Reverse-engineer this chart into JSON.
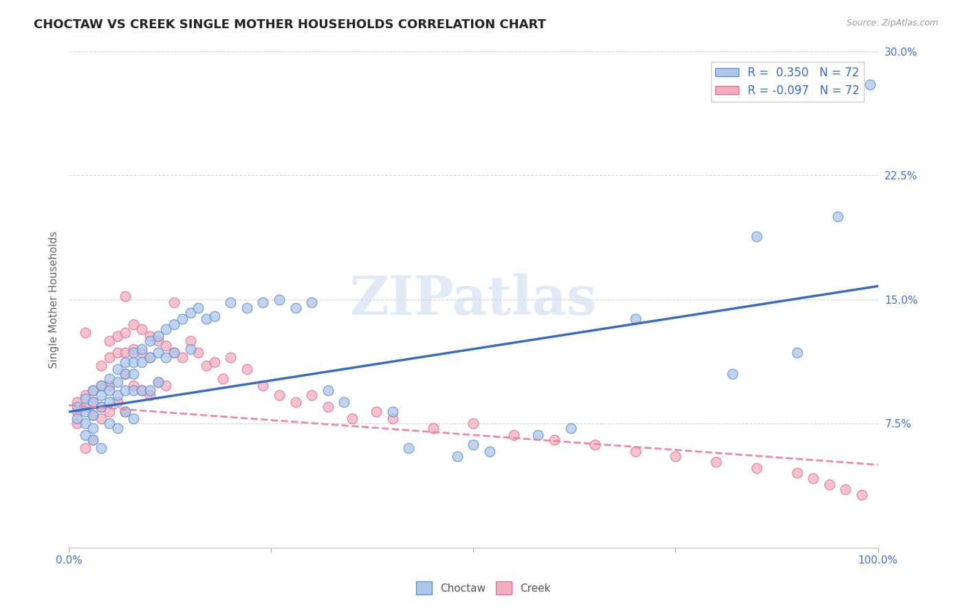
{
  "title": "CHOCTAW VS CREEK SINGLE MOTHER HOUSEHOLDS CORRELATION CHART",
  "source": "Source: ZipAtlas.com",
  "ylabel": "Single Mother Households",
  "x_min": 0.0,
  "x_max": 1.0,
  "y_min": 0.0,
  "y_max": 0.3,
  "y_ticks": [
    0.075,
    0.15,
    0.225,
    0.3
  ],
  "y_tick_labels": [
    "7.5%",
    "15.0%",
    "22.5%",
    "30.0%"
  ],
  "choctaw_color": "#aec6e8",
  "creek_color": "#f4aec0",
  "choctaw_edge_color": "#5b8fd4",
  "creek_edge_color": "#e07090",
  "choctaw_line_color": "#3a6abf",
  "creek_line_color": "#e88aa0",
  "choctaw_r": 0.35,
  "choctaw_n": 72,
  "creek_r": -0.097,
  "creek_n": 72,
  "background_color": "#ffffff",
  "grid_color": "#c8c8c8",
  "title_color": "#222222",
  "axis_label_color": "#4472c4",
  "choctaw_line_x0": 0.0,
  "choctaw_line_y0": 0.082,
  "choctaw_line_x1": 1.0,
  "choctaw_line_y1": 0.158,
  "creek_line_x0": 0.0,
  "creek_line_y0": 0.086,
  "creek_line_x1": 1.0,
  "creek_line_y1": 0.05,
  "choctaw_scatter_x": [
    0.01,
    0.01,
    0.02,
    0.02,
    0.02,
    0.02,
    0.03,
    0.03,
    0.03,
    0.03,
    0.03,
    0.04,
    0.04,
    0.04,
    0.04,
    0.05,
    0.05,
    0.05,
    0.05,
    0.06,
    0.06,
    0.06,
    0.06,
    0.07,
    0.07,
    0.07,
    0.07,
    0.08,
    0.08,
    0.08,
    0.08,
    0.08,
    0.09,
    0.09,
    0.09,
    0.1,
    0.1,
    0.1,
    0.11,
    0.11,
    0.11,
    0.12,
    0.12,
    0.13,
    0.13,
    0.14,
    0.15,
    0.15,
    0.16,
    0.17,
    0.18,
    0.2,
    0.22,
    0.24,
    0.26,
    0.28,
    0.3,
    0.32,
    0.34,
    0.4,
    0.42,
    0.48,
    0.5,
    0.52,
    0.58,
    0.62,
    0.7,
    0.82,
    0.85,
    0.9,
    0.95,
    0.99
  ],
  "choctaw_scatter_y": [
    0.085,
    0.078,
    0.09,
    0.082,
    0.075,
    0.068,
    0.095,
    0.088,
    0.08,
    0.072,
    0.065,
    0.098,
    0.092,
    0.085,
    0.06,
    0.102,
    0.095,
    0.088,
    0.075,
    0.108,
    0.1,
    0.092,
    0.072,
    0.112,
    0.105,
    0.095,
    0.082,
    0.118,
    0.112,
    0.105,
    0.095,
    0.078,
    0.12,
    0.112,
    0.095,
    0.125,
    0.115,
    0.095,
    0.128,
    0.118,
    0.1,
    0.132,
    0.115,
    0.135,
    0.118,
    0.138,
    0.142,
    0.12,
    0.145,
    0.138,
    0.14,
    0.148,
    0.145,
    0.148,
    0.15,
    0.145,
    0.148,
    0.095,
    0.088,
    0.082,
    0.06,
    0.055,
    0.062,
    0.058,
    0.068,
    0.072,
    0.138,
    0.105,
    0.188,
    0.118,
    0.2,
    0.28
  ],
  "creek_scatter_x": [
    0.01,
    0.01,
    0.01,
    0.02,
    0.02,
    0.02,
    0.02,
    0.03,
    0.03,
    0.03,
    0.03,
    0.04,
    0.04,
    0.04,
    0.04,
    0.05,
    0.05,
    0.05,
    0.05,
    0.06,
    0.06,
    0.06,
    0.07,
    0.07,
    0.07,
    0.07,
    0.08,
    0.08,
    0.08,
    0.09,
    0.09,
    0.09,
    0.1,
    0.1,
    0.1,
    0.11,
    0.11,
    0.12,
    0.12,
    0.13,
    0.14,
    0.15,
    0.16,
    0.17,
    0.18,
    0.19,
    0.2,
    0.22,
    0.24,
    0.26,
    0.28,
    0.3,
    0.32,
    0.35,
    0.38,
    0.4,
    0.45,
    0.5,
    0.55,
    0.6,
    0.65,
    0.7,
    0.75,
    0.8,
    0.85,
    0.9,
    0.92,
    0.94,
    0.96,
    0.98,
    0.13,
    0.07
  ],
  "creek_scatter_y": [
    0.088,
    0.082,
    0.075,
    0.092,
    0.085,
    0.13,
    0.06,
    0.095,
    0.088,
    0.08,
    0.065,
    0.11,
    0.098,
    0.085,
    0.078,
    0.125,
    0.115,
    0.098,
    0.082,
    0.128,
    0.118,
    0.088,
    0.13,
    0.118,
    0.105,
    0.082,
    0.135,
    0.12,
    0.098,
    0.132,
    0.118,
    0.095,
    0.128,
    0.115,
    0.092,
    0.125,
    0.1,
    0.122,
    0.098,
    0.118,
    0.115,
    0.125,
    0.118,
    0.11,
    0.112,
    0.102,
    0.115,
    0.108,
    0.098,
    0.092,
    0.088,
    0.092,
    0.085,
    0.078,
    0.082,
    0.078,
    0.072,
    0.075,
    0.068,
    0.065,
    0.062,
    0.058,
    0.055,
    0.052,
    0.048,
    0.045,
    0.042,
    0.038,
    0.035,
    0.032,
    0.148,
    0.152
  ]
}
